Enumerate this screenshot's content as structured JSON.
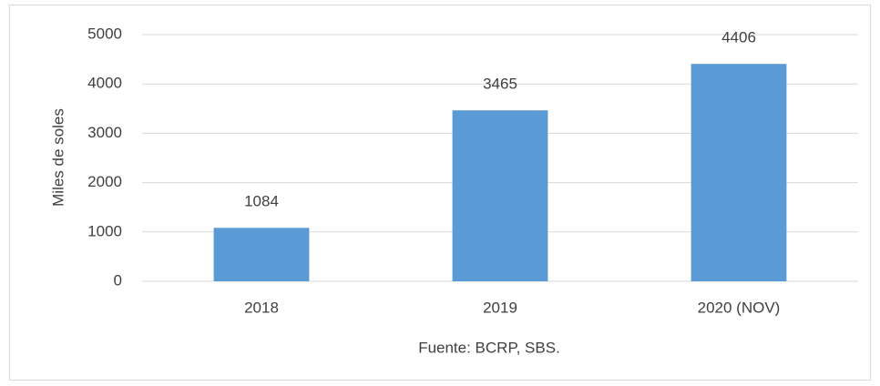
{
  "chart_data": {
    "type": "bar",
    "categories": [
      "2018",
      "2019",
      "2020 (NOV)"
    ],
    "values": [
      1084,
      3465,
      4406
    ],
    "color": "#5b9bd5",
    "y_label": "Miles de soles",
    "x_label": "Fuente: BCRP, SBS.",
    "ylim": [
      0,
      5000
    ],
    "yticks": [
      0,
      1000,
      2000,
      3000,
      4000,
      5000
    ],
    "grid": true,
    "data_labels": true
  }
}
